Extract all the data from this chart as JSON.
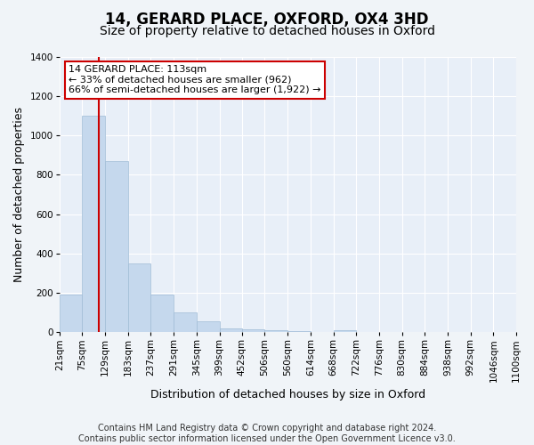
{
  "title": "14, GERARD PLACE, OXFORD, OX4 3HD",
  "subtitle": "Size of property relative to detached houses in Oxford",
  "xlabel": "Distribution of detached houses by size in Oxford",
  "ylabel": "Number of detached properties",
  "bin_labels": [
    "21sqm",
    "75sqm",
    "129sqm",
    "183sqm",
    "237sqm",
    "291sqm",
    "345sqm",
    "399sqm",
    "452sqm",
    "506sqm",
    "560sqm",
    "614sqm",
    "668sqm",
    "722sqm",
    "776sqm",
    "830sqm",
    "884sqm",
    "938sqm",
    "992sqm",
    "1046sqm",
    "1100sqm"
  ],
  "bar_heights": [
    190,
    1100,
    870,
    350,
    190,
    100,
    55,
    20,
    15,
    10,
    5,
    0,
    10,
    0,
    0,
    0,
    0,
    0,
    0,
    0
  ],
  "bar_color": "#c5d8ed",
  "bar_edge_color": "#a0bcd6",
  "vline_x": 113,
  "vline_color": "#cc0000",
  "annotation_line1": "14 GERARD PLACE: 113sqm",
  "annotation_line2": "← 33% of detached houses are smaller (962)",
  "annotation_line3": "66% of semi-detached houses are larger (1,922) →",
  "annotation_box_color": "#ffffff",
  "annotation_box_edge": "#cc0000",
  "ylim": [
    0,
    1400
  ],
  "yticks": [
    0,
    200,
    400,
    600,
    800,
    1000,
    1200,
    1400
  ],
  "bin_edges": [
    21,
    75,
    129,
    183,
    237,
    291,
    345,
    399,
    452,
    506,
    560,
    614,
    668,
    722,
    776,
    830,
    884,
    938,
    992,
    1046,
    1100
  ],
  "footer": "Contains HM Land Registry data © Crown copyright and database right 2024.\nContains public sector information licensed under the Open Government Licence v3.0.",
  "bg_color": "#f0f4f8",
  "plot_bg_color": "#e8eff8",
  "grid_color": "#ffffff",
  "title_fontsize": 12,
  "subtitle_fontsize": 10,
  "axis_label_fontsize": 9,
  "tick_fontsize": 7.5,
  "footer_fontsize": 7
}
